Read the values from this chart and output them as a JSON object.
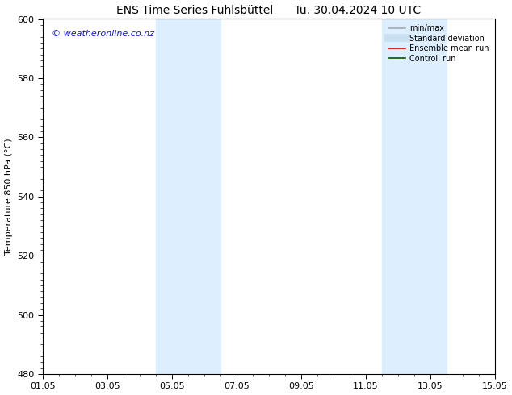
{
  "title": "ENS Time Series Fuhlsbüttel      Tu. 30.04.2024 10 UTC",
  "ylabel": "Temperature 850 hPa (°C)",
  "ylim": [
    480,
    600
  ],
  "yticks_major": [
    480,
    500,
    520,
    540,
    560,
    580,
    600
  ],
  "xlim": [
    0,
    14
  ],
  "xtick_labels": [
    "01.05",
    "03.05",
    "05.05",
    "07.05",
    "09.05",
    "11.05",
    "13.05",
    "15.05"
  ],
  "xtick_positions": [
    0,
    2,
    4,
    6,
    8,
    10,
    12,
    14
  ],
  "shaded_bands": [
    {
      "xstart": 3.5,
      "xend": 5.5,
      "color": "#ddeeff"
    },
    {
      "xstart": 10.5,
      "xend": 12.5,
      "color": "#ddeeff"
    }
  ],
  "watermark_text": "© weatheronline.co.nz",
  "watermark_color": "#1111cc",
  "bg_color": "#ffffff",
  "legend_items": [
    {
      "label": "min/max",
      "color": "#aaaaaa",
      "lw": 1.2,
      "ls": "-"
    },
    {
      "label": "Standard deviation",
      "color": "#c8dff0",
      "lw": 7,
      "ls": "-"
    },
    {
      "label": "Ensemble mean run",
      "color": "#dd0000",
      "lw": 1.2,
      "ls": "-"
    },
    {
      "label": "Controll run",
      "color": "#005500",
      "lw": 1.2,
      "ls": "-"
    }
  ],
  "title_fontsize": 10,
  "ylabel_fontsize": 8,
  "tick_fontsize": 8,
  "legend_fontsize": 7,
  "watermark_fontsize": 8
}
